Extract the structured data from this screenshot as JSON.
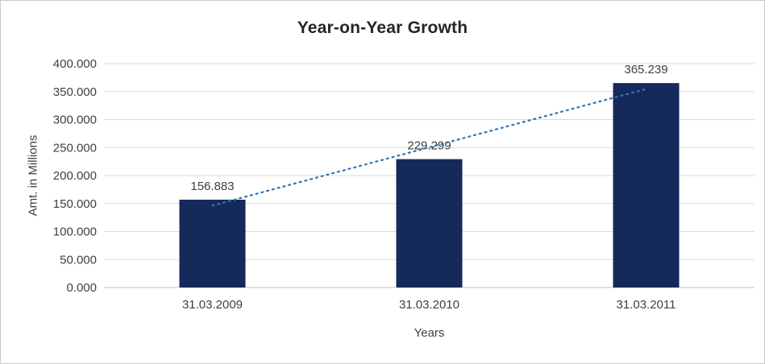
{
  "chart_data": {
    "type": "bar",
    "title": "Year-on-Year Growth",
    "xlabel": "Years",
    "ylabel": "Amt. in Millions",
    "categories": [
      "31.03.2009",
      "31.03.2010",
      "31.03.2011"
    ],
    "values": [
      156.883,
      229.299,
      365.239
    ],
    "data_labels": [
      "156.883",
      "229.299",
      "365.239"
    ],
    "y_ticks": [
      "0.000",
      "50.000",
      "100.000",
      "150.000",
      "200.000",
      "250.000",
      "300.000",
      "350.000",
      "400.000"
    ],
    "ylim": [
      0,
      400
    ],
    "grid": true,
    "legend": false,
    "trendline": true,
    "colors": {
      "bar": "#15295B",
      "trendline": "#2E75B6",
      "gridline": "#D9D9D9",
      "axis_line": "#BFBFBF",
      "axis_text": "#404040",
      "title_text": "#262626",
      "background": "#FFFFFF",
      "border": "#C9C9C9"
    }
  }
}
